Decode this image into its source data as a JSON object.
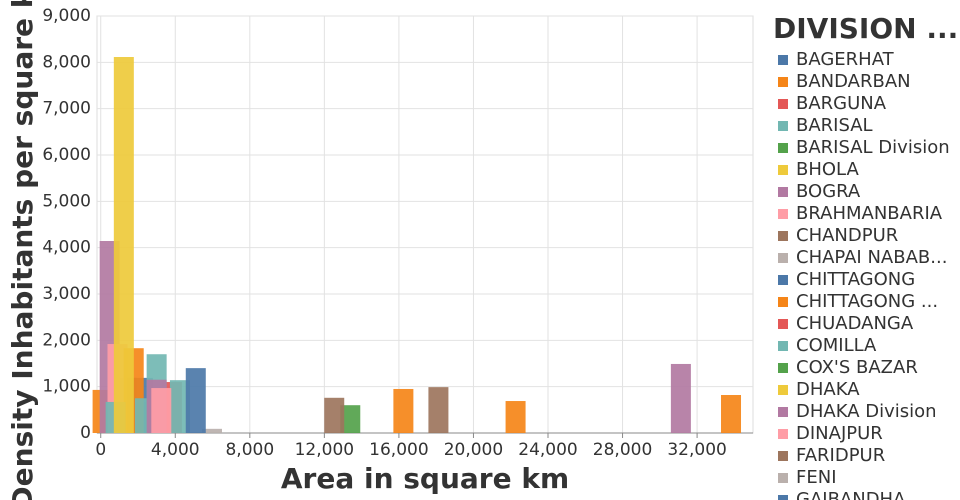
{
  "chart_data": {
    "type": "bar",
    "x_label": "Area in square km",
    "y_label": "Density Inhabitants per square km",
    "legend_title": "DIVISION ...",
    "legend": "right",
    "grid": true,
    "xlim": [
      -200,
      35000
    ],
    "ylim": [
      0,
      9000
    ],
    "xticks": [
      0,
      {
        "value": 4000,
        "label": "4,000"
      },
      {
        "value": 8000,
        "label": "8,000"
      },
      {
        "value": 12000,
        "label": "12,000"
      },
      {
        "value": 16000,
        "label": "16,000"
      },
      {
        "value": 20000,
        "label": "20,000"
      },
      {
        "value": 24000,
        "label": "24,000"
      },
      {
        "value": 28000,
        "label": "28,000"
      },
      {
        "value": 32000,
        "label": "32,000"
      }
    ],
    "yticks": [
      0,
      {
        "value": 1000,
        "label": "1,000"
      },
      {
        "value": 2000,
        "label": "2,000"
      },
      {
        "value": 3000,
        "label": "3,000"
      },
      {
        "value": 4000,
        "label": "4,000"
      },
      {
        "value": 5000,
        "label": "5,000"
      },
      {
        "value": 6000,
        "label": "6,000"
      },
      {
        "value": 7000,
        "label": "7,000"
      },
      {
        "value": 8000,
        "label": "8,000"
      },
      {
        "value": 9000,
        "label": "9,000"
      }
    ],
    "series": [
      {
        "name": "BAGERHAT",
        "color": "#4c78a8",
        "x": [
          1400
        ],
        "values": [
          1190
        ]
      },
      {
        "name": "BANDARBAN",
        "color": "#f58518",
        "x": [
          100
        ],
        "values": [
          930
        ]
      },
      {
        "name": "BARGUNA",
        "color": "#e45756",
        "x": [
          3820
        ],
        "values": [
          1100
        ]
      },
      {
        "name": "BARISAL",
        "color": "#72b7b2",
        "x": [
          4250
        ],
        "values": [
          1140
        ]
      },
      {
        "name": "BARISAL Division",
        "color": "#54a24b",
        "x": [
          13390
        ],
        "values": [
          600
        ]
      },
      {
        "name": "BHOLA",
        "color": "#eeca3b",
        "x": [],
        "values": []
      },
      {
        "name": "BOGRA",
        "color": "#b279a2",
        "x": [
          480
        ],
        "values": [
          4144
        ]
      },
      {
        "name": "BRAHMANBARIA",
        "color": "#ff9da6",
        "x": [
          900
        ],
        "values": [
          1920
        ]
      },
      {
        "name": "CHANDPUR",
        "color": "#9d755d",
        "x": [
          12530
        ],
        "values": [
          760
        ]
      },
      {
        "name": "CHAPAI NABAB...",
        "color": "#bab0ac",
        "x": [
          5970
        ],
        "values": [
          90
        ]
      },
      {
        "name": "CHITTAGONG",
        "color": "#4c78a8",
        "x": [
          2260,
          5100,
          2400
        ],
        "values": [
          1190,
          1400,
          670
        ]
      },
      {
        "name": "CHITTAGONG ...",
        "color": "#f58518",
        "x": [
          1770,
          16240,
          22260,
          33820
        ],
        "values": [
          1830,
          950,
          690,
          820
        ]
      },
      {
        "name": "CHUADANGA",
        "color": "#e45756",
        "x": [],
        "values": []
      },
      {
        "name": "COMILLA",
        "color": "#72b7b2",
        "x": [
          3000,
          2370,
          800
        ],
        "values": [
          1700,
          750,
          670
        ]
      },
      {
        "name": "COX'S BAZAR",
        "color": "#54a24b",
        "x": [],
        "values": []
      },
      {
        "name": "DHAKA",
        "color": "#eeca3b",
        "x": [
          1240
        ],
        "values": [
          8115
        ]
      },
      {
        "name": "DHAKA Division",
        "color": "#b279a2",
        "x": [
          31130,
          3000
        ],
        "values": [
          1490,
          1150
        ]
      },
      {
        "name": "DINAJPUR",
        "color": "#ff9da6",
        "x": [
          3250
        ],
        "values": [
          970
        ]
      },
      {
        "name": "FARIDPUR",
        "color": "#9d755d",
        "x": [
          18120
        ],
        "values": [
          990
        ]
      },
      {
        "name": "FENI",
        "color": "#bab0ac",
        "x": [],
        "values": []
      },
      {
        "name": "GAIBANDHA",
        "color": "#4c78a8",
        "x": [],
        "values": []
      }
    ]
  }
}
